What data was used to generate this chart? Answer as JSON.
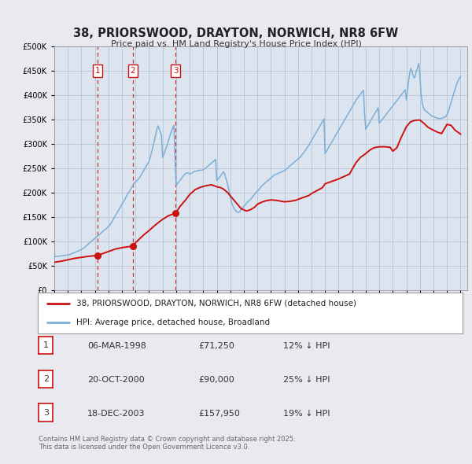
{
  "title": "38, PRIORSWOOD, DRAYTON, NORWICH, NR8 6FW",
  "subtitle": "Price paid vs. HM Land Registry's House Price Index (HPI)",
  "bg_color": "#e8eaf0",
  "plot_bg_color": "#dce4f0",
  "legend_label_red": "38, PRIORSWOOD, DRAYTON, NORWICH, NR8 6FW (detached house)",
  "legend_label_blue": "HPI: Average price, detached house, Broadland",
  "footer": "Contains HM Land Registry data © Crown copyright and database right 2025.\nThis data is licensed under the Open Government Licence v3.0.",
  "transactions": [
    {
      "num": 1,
      "date": "06-MAR-1998",
      "price": "£71,250",
      "pct": "12% ↓ HPI",
      "year": 1998.18
    },
    {
      "num": 2,
      "date": "20-OCT-2000",
      "price": "£90,000",
      "pct": "25% ↓ HPI",
      "year": 2000.8
    },
    {
      "num": 3,
      "date": "18-DEC-2003",
      "price": "£157,950",
      "pct": "19% ↓ HPI",
      "year": 2003.96
    }
  ],
  "ylim": [
    0,
    500000
  ],
  "yticks": [
    0,
    50000,
    100000,
    150000,
    200000,
    250000,
    300000,
    350000,
    400000,
    450000,
    500000
  ],
  "hpi_years": [
    1995.0,
    1995.083,
    1995.167,
    1995.25,
    1995.333,
    1995.417,
    1995.5,
    1995.583,
    1995.667,
    1995.75,
    1995.833,
    1995.917,
    1996.0,
    1996.083,
    1996.167,
    1996.25,
    1996.333,
    1996.417,
    1996.5,
    1996.583,
    1996.667,
    1996.75,
    1996.833,
    1996.917,
    1997.0,
    1997.083,
    1997.167,
    1997.25,
    1997.333,
    1997.417,
    1997.5,
    1997.583,
    1997.667,
    1997.75,
    1997.833,
    1997.917,
    1998.0,
    1998.083,
    1998.167,
    1998.25,
    1998.333,
    1998.417,
    1998.5,
    1998.583,
    1998.667,
    1998.75,
    1998.833,
    1998.917,
    1999.0,
    1999.083,
    1999.167,
    1999.25,
    1999.333,
    1999.417,
    1999.5,
    1999.583,
    1999.667,
    1999.75,
    1999.833,
    1999.917,
    2000.0,
    2000.083,
    2000.167,
    2000.25,
    2000.333,
    2000.417,
    2000.5,
    2000.583,
    2000.667,
    2000.75,
    2000.833,
    2000.917,
    2001.0,
    2001.083,
    2001.167,
    2001.25,
    2001.333,
    2001.417,
    2001.5,
    2001.583,
    2001.667,
    2001.75,
    2001.833,
    2001.917,
    2002.0,
    2002.083,
    2002.167,
    2002.25,
    2002.333,
    2002.417,
    2002.5,
    2002.583,
    2002.667,
    2002.75,
    2002.833,
    2002.917,
    2003.0,
    2003.083,
    2003.167,
    2003.25,
    2003.333,
    2003.417,
    2003.5,
    2003.583,
    2003.667,
    2003.75,
    2003.833,
    2003.917,
    2004.0,
    2004.083,
    2004.167,
    2004.25,
    2004.333,
    2004.417,
    2004.5,
    2004.583,
    2004.667,
    2004.75,
    2004.833,
    2004.917,
    2005.0,
    2005.083,
    2005.167,
    2005.25,
    2005.333,
    2005.417,
    2005.5,
    2005.583,
    2005.667,
    2005.75,
    2005.833,
    2005.917,
    2006.0,
    2006.083,
    2006.167,
    2006.25,
    2006.333,
    2006.417,
    2006.5,
    2006.583,
    2006.667,
    2006.75,
    2006.833,
    2006.917,
    2007.0,
    2007.083,
    2007.167,
    2007.25,
    2007.333,
    2007.417,
    2007.5,
    2007.583,
    2007.667,
    2007.75,
    2007.833,
    2007.917,
    2008.0,
    2008.083,
    2008.167,
    2008.25,
    2008.333,
    2008.417,
    2008.5,
    2008.583,
    2008.667,
    2008.75,
    2008.833,
    2008.917,
    2009.0,
    2009.083,
    2009.167,
    2009.25,
    2009.333,
    2009.417,
    2009.5,
    2009.583,
    2009.667,
    2009.75,
    2009.833,
    2009.917,
    2010.0,
    2010.083,
    2010.167,
    2010.25,
    2010.333,
    2010.417,
    2010.5,
    2010.583,
    2010.667,
    2010.75,
    2010.833,
    2010.917,
    2011.0,
    2011.083,
    2011.167,
    2011.25,
    2011.333,
    2011.417,
    2011.5,
    2011.583,
    2011.667,
    2011.75,
    2011.833,
    2011.917,
    2012.0,
    2012.083,
    2012.167,
    2012.25,
    2012.333,
    2012.417,
    2012.5,
    2012.583,
    2012.667,
    2012.75,
    2012.833,
    2012.917,
    2013.0,
    2013.083,
    2013.167,
    2013.25,
    2013.333,
    2013.417,
    2013.5,
    2013.583,
    2013.667,
    2013.75,
    2013.833,
    2013.917,
    2014.0,
    2014.083,
    2014.167,
    2014.25,
    2014.333,
    2014.417,
    2014.5,
    2014.583,
    2014.667,
    2014.75,
    2014.833,
    2014.917,
    2015.0,
    2015.083,
    2015.167,
    2015.25,
    2015.333,
    2015.417,
    2015.5,
    2015.583,
    2015.667,
    2015.75,
    2015.833,
    2015.917,
    2016.0,
    2016.083,
    2016.167,
    2016.25,
    2016.333,
    2016.417,
    2016.5,
    2016.583,
    2016.667,
    2016.75,
    2016.833,
    2016.917,
    2017.0,
    2017.083,
    2017.167,
    2017.25,
    2017.333,
    2017.417,
    2017.5,
    2017.583,
    2017.667,
    2017.75,
    2017.833,
    2017.917,
    2018.0,
    2018.083,
    2018.167,
    2018.25,
    2018.333,
    2018.417,
    2018.5,
    2018.583,
    2018.667,
    2018.75,
    2018.833,
    2018.917,
    2019.0,
    2019.083,
    2019.167,
    2019.25,
    2019.333,
    2019.417,
    2019.5,
    2019.583,
    2019.667,
    2019.75,
    2019.833,
    2019.917,
    2020.0,
    2020.083,
    2020.167,
    2020.25,
    2020.333,
    2020.417,
    2020.5,
    2020.583,
    2020.667,
    2020.75,
    2020.833,
    2020.917,
    2021.0,
    2021.083,
    2021.167,
    2021.25,
    2021.333,
    2021.417,
    2021.5,
    2021.583,
    2021.667,
    2021.75,
    2021.833,
    2021.917,
    2022.0,
    2022.083,
    2022.167,
    2022.25,
    2022.333,
    2022.417,
    2022.5,
    2022.583,
    2022.667,
    2022.75,
    2022.833,
    2022.917,
    2023.0,
    2023.083,
    2023.167,
    2023.25,
    2023.333,
    2023.417,
    2023.5,
    2023.583,
    2023.667,
    2023.75,
    2023.833,
    2023.917,
    2024.0,
    2024.083,
    2024.167,
    2024.25,
    2024.333,
    2024.417,
    2024.5,
    2024.583,
    2024.667,
    2024.75,
    2024.833,
    2024.917,
    2025.0
  ],
  "hpi_values": [
    68000,
    68500,
    69000,
    69200,
    69500,
    69800,
    70000,
    70200,
    70500,
    70800,
    71000,
    71500,
    72000,
    72500,
    73000,
    74000,
    75000,
    76000,
    77000,
    78000,
    79000,
    80000,
    81000,
    82000,
    83000,
    84500,
    86000,
    88000,
    90000,
    92000,
    94000,
    96000,
    98000,
    100000,
    102000,
    104000,
    106000,
    108000,
    110000,
    112000,
    114000,
    116000,
    118000,
    120000,
    122000,
    124000,
    126000,
    128000,
    130000,
    133000,
    136000,
    140000,
    144000,
    148000,
    152000,
    156000,
    160000,
    164000,
    168000,
    172000,
    176000,
    180000,
    184000,
    188000,
    193000,
    197000,
    200000,
    204000,
    208000,
    212000,
    216000,
    220000,
    222000,
    224000,
    226000,
    229000,
    232000,
    236000,
    240000,
    244000,
    248000,
    252000,
    256000,
    260000,
    264000,
    272000,
    281000,
    290000,
    300000,
    310000,
    320000,
    330000,
    337000,
    331000,
    324000,
    317000,
    272000,
    278000,
    284000,
    291000,
    298000,
    305000,
    313000,
    320000,
    327000,
    333000,
    338000,
    272000,
    215000,
    218000,
    221000,
    224000,
    227000,
    230000,
    233000,
    236000,
    238000,
    240000,
    240000,
    240000,
    238000,
    239000,
    240000,
    242000,
    243000,
    244000,
    244000,
    245000,
    245000,
    246000,
    246000,
    246000,
    247000,
    248000,
    250000,
    252000,
    254000,
    256000,
    258000,
    260000,
    262000,
    264000,
    266000,
    268000,
    225000,
    227000,
    230000,
    233000,
    236000,
    240000,
    243000,
    238000,
    230000,
    222000,
    213000,
    202000,
    190000,
    181000,
    174000,
    169000,
    165000,
    162000,
    160000,
    159000,
    160000,
    163000,
    166000,
    169000,
    172000,
    174000,
    177000,
    180000,
    182000,
    184000,
    186000,
    189000,
    192000,
    195000,
    198000,
    201000,
    203000,
    205000,
    208000,
    211000,
    214000,
    216000,
    218000,
    220000,
    222000,
    224000,
    226000,
    228000,
    230000,
    232000,
    234000,
    236000,
    237000,
    238000,
    239000,
    240000,
    241000,
    242000,
    243000,
    244000,
    245000,
    247000,
    249000,
    251000,
    253000,
    255000,
    257000,
    259000,
    261000,
    263000,
    265000,
    267000,
    269000,
    271000,
    273000,
    276000,
    279000,
    282000,
    285000,
    289000,
    292000,
    295000,
    299000,
    303000,
    307000,
    311000,
    315000,
    319000,
    323000,
    327000,
    331000,
    335000,
    339000,
    343000,
    347000,
    351000,
    280000,
    284000,
    288000,
    292000,
    296000,
    300000,
    304000,
    308000,
    312000,
    316000,
    320000,
    324000,
    328000,
    332000,
    336000,
    340000,
    344000,
    348000,
    352000,
    356000,
    360000,
    364000,
    368000,
    372000,
    376000,
    380000,
    384000,
    388000,
    392000,
    395000,
    398000,
    401000,
    404000,
    407000,
    410000,
    360000,
    330000,
    334000,
    338000,
    342000,
    346000,
    350000,
    354000,
    358000,
    362000,
    366000,
    370000,
    374000,
    342000,
    345000,
    348000,
    351000,
    354000,
    357000,
    360000,
    363000,
    366000,
    369000,
    372000,
    375000,
    378000,
    381000,
    384000,
    387000,
    390000,
    393000,
    396000,
    399000,
    402000,
    405000,
    408000,
    411000,
    390000,
    410000,
    430000,
    445000,
    455000,
    448000,
    440000,
    435000,
    440000,
    450000,
    458000,
    465000,
    440000,
    405000,
    385000,
    375000,
    370000,
    368000,
    366000,
    364000,
    362000,
    360000,
    358000,
    357000,
    356000,
    355000,
    354000,
    353000,
    352000,
    352000,
    352000,
    352000,
    353000,
    354000,
    355000,
    356000,
    360000,
    365000,
    372000,
    380000,
    388000,
    396000,
    404000,
    410000,
    418000,
    425000,
    430000,
    435000,
    438000
  ],
  "price_years": [
    1995.0,
    1995.5,
    1996.0,
    1996.5,
    1997.0,
    1997.5,
    1998.0,
    1998.18,
    1998.5,
    1999.0,
    1999.5,
    2000.0,
    2000.5,
    2000.8,
    2001.0,
    2001.3,
    2001.6,
    2002.0,
    2002.4,
    2002.8,
    2003.0,
    2003.4,
    2003.96,
    2004.3,
    2004.7,
    2005.0,
    2005.4,
    2005.8,
    2006.2,
    2006.6,
    2007.0,
    2007.3,
    2007.5,
    2007.8,
    2008.1,
    2008.4,
    2008.8,
    2009.2,
    2009.5,
    2009.8,
    2010.0,
    2010.3,
    2010.6,
    2011.0,
    2011.4,
    2011.8,
    2012.0,
    2012.4,
    2012.8,
    2013.0,
    2013.4,
    2013.8,
    2014.0,
    2014.4,
    2014.8,
    2015.0,
    2015.3,
    2015.6,
    2016.0,
    2016.4,
    2016.8,
    2017.0,
    2017.3,
    2017.6,
    2018.0,
    2018.3,
    2018.6,
    2019.0,
    2019.4,
    2019.8,
    2020.0,
    2020.3,
    2020.6,
    2021.0,
    2021.3,
    2021.6,
    2022.0,
    2022.3,
    2022.6,
    2023.0,
    2023.3,
    2023.6,
    2024.0,
    2024.3,
    2024.6,
    2025.0
  ],
  "price_values": [
    57000,
    59000,
    62000,
    65000,
    67000,
    69000,
    70500,
    71250,
    74000,
    79000,
    84000,
    87000,
    89000,
    90000,
    97000,
    105000,
    113000,
    122000,
    132000,
    141000,
    145000,
    152000,
    157950,
    172000,
    185000,
    196000,
    206000,
    211000,
    214000,
    216000,
    212000,
    210000,
    207000,
    200000,
    190000,
    180000,
    167000,
    162000,
    165000,
    170000,
    176000,
    180000,
    183000,
    185000,
    184000,
    182000,
    181000,
    182000,
    184000,
    186000,
    190000,
    194000,
    198000,
    204000,
    210000,
    218000,
    221000,
    224000,
    228000,
    233000,
    238000,
    248000,
    262000,
    272000,
    280000,
    287000,
    292000,
    294000,
    294000,
    293000,
    285000,
    292000,
    312000,
    335000,
    345000,
    348000,
    349000,
    342000,
    334000,
    328000,
    324000,
    321000,
    340000,
    338000,
    328000,
    320000
  ],
  "sale_points": [
    {
      "year": 1998.18,
      "value": 71250
    },
    {
      "year": 2000.8,
      "value": 90000
    },
    {
      "year": 2003.96,
      "value": 157950
    }
  ]
}
